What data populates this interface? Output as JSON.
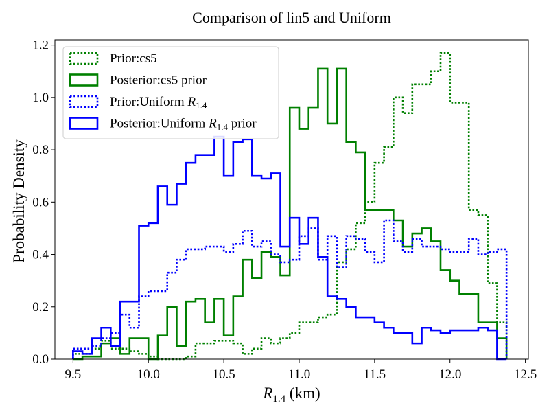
{
  "chart_data": {
    "type": "histogram-step",
    "title": "Comparison of lin5 and Uniform",
    "xlabel": {
      "text": "R",
      "sub": "1.4",
      "unit": " (km)"
    },
    "ylabel": "Probability Density",
    "xlim": [
      9.38,
      12.52
    ],
    "ylim": [
      0,
      1.22
    ],
    "xticks": [
      "9.5",
      "10.0",
      "10.5",
      "11.0",
      "11.5",
      "12.0",
      "12.5"
    ],
    "yticks": [
      "0.0",
      "0.2",
      "0.4",
      "0.6",
      "0.8",
      "1.0",
      "1.2"
    ],
    "legend_position": "upper-left",
    "legend": [
      {
        "text": "Prior:cs5",
        "sub": "",
        "suffix": ""
      },
      {
        "text": "Posterior:cs5 prior",
        "sub": "",
        "suffix": ""
      },
      {
        "text": "Prior:Uniform R",
        "sub": "1.4",
        "suffix": ""
      },
      {
        "text": "Posterior:Uniform R",
        "sub": "1.4",
        "suffix": " prior"
      }
    ],
    "bins": {
      "start": 9.5,
      "end": 12.375,
      "count": 46
    },
    "series": [
      {
        "color": "#008000",
        "style": "dotted",
        "values": [
          0.02,
          0.02,
          0.04,
          0.07,
          0.04,
          0.04,
          0.03,
          0.02,
          0.01,
          0.0,
          0.0,
          0.0,
          0.01,
          0.06,
          0.06,
          0.07,
          0.07,
          0.06,
          0.02,
          0.04,
          0.08,
          0.06,
          0.08,
          0.1,
          0.14,
          0.14,
          0.16,
          0.17,
          0.37,
          0.42,
          0.52,
          0.6,
          0.75,
          0.81,
          1.0,
          0.94,
          1.05,
          1.05,
          1.1,
          1.17,
          0.98,
          0.98,
          0.57,
          0.55,
          0.29,
          0.14
        ]
      },
      {
        "color": "#008000",
        "style": "solid",
        "values": [
          0.0,
          0.01,
          0.01,
          0.06,
          0.08,
          0.02,
          0.08,
          0.08,
          0.0,
          0.09,
          0.2,
          0.05,
          0.22,
          0.23,
          0.14,
          0.23,
          0.09,
          0.24,
          0.38,
          0.31,
          0.41,
          0.39,
          0.32,
          0.96,
          0.88,
          0.96,
          1.11,
          0.9,
          1.11,
          0.83,
          0.79,
          0.57,
          0.57,
          0.57,
          0.53,
          0.43,
          0.48,
          0.5,
          0.45,
          0.34,
          0.3,
          0.25,
          0.25,
          0.14,
          0.14,
          0.08
        ]
      },
      {
        "color": "#0000ff",
        "style": "dotted",
        "values": [
          0.04,
          0.04,
          0.05,
          0.08,
          0.1,
          0.17,
          0.12,
          0.24,
          0.26,
          0.26,
          0.33,
          0.38,
          0.42,
          0.42,
          0.43,
          0.43,
          0.41,
          0.44,
          0.49,
          0.43,
          0.45,
          0.4,
          0.37,
          0.38,
          0.47,
          0.5,
          0.38,
          0.47,
          0.35,
          0.47,
          0.46,
          0.41,
          0.37,
          0.53,
          0.45,
          0.41,
          0.46,
          0.43,
          0.43,
          0.42,
          0.41,
          0.41,
          0.46,
          0.4,
          0.41,
          0.42
        ]
      },
      {
        "color": "#0000ff",
        "style": "solid",
        "values": [
          0.03,
          0.02,
          0.08,
          0.12,
          0.05,
          0.22,
          0.22,
          0.51,
          0.52,
          0.66,
          0.59,
          0.67,
          0.75,
          0.78,
          0.78,
          0.85,
          0.7,
          0.83,
          0.84,
          0.7,
          0.69,
          0.71,
          0.43,
          0.54,
          0.44,
          0.54,
          0.39,
          0.24,
          0.23,
          0.2,
          0.16,
          0.16,
          0.14,
          0.12,
          0.1,
          0.1,
          0.06,
          0.12,
          0.11,
          0.1,
          0.11,
          0.11,
          0.11,
          0.12,
          0.11,
          0.0
        ]
      }
    ]
  }
}
